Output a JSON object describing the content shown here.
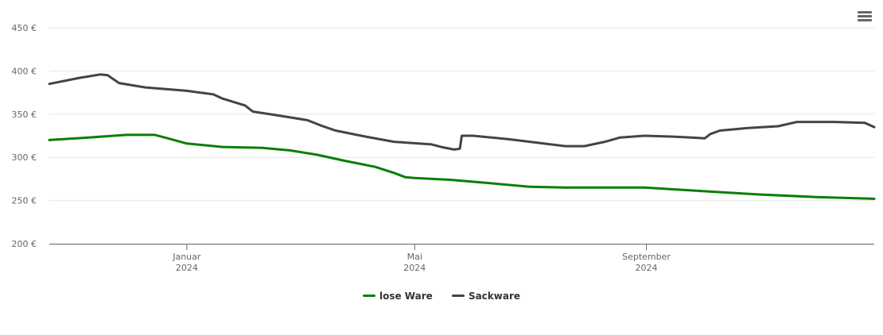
{
  "chart_data": {
    "type": "line",
    "title": "",
    "xlabel": "",
    "ylabel": "",
    "ylim": [
      200,
      450
    ],
    "y_ticks": [
      "200 €",
      "250 €",
      "300 €",
      "350 €",
      "400 €",
      "450 €"
    ],
    "y_tick_values": [
      200,
      250,
      300,
      350,
      400,
      450
    ],
    "x_ticks": [
      {
        "label": [
          "Januar",
          "2024"
        ],
        "date": "2024-01-01"
      },
      {
        "label": [
          "Mai",
          "2024"
        ],
        "date": "2024-05-01"
      },
      {
        "label": [
          "September",
          "2024"
        ],
        "date": "2024-09-01"
      }
    ],
    "xlim": [
      "2023-10-20",
      "2024-12-31"
    ],
    "grid": true,
    "legend": "bottom-center",
    "series": [
      {
        "name": "lose Ware",
        "color": "#0a7e07",
        "points": [
          [
            "2023-10-20",
            320
          ],
          [
            "2023-11-10",
            323
          ],
          [
            "2023-11-30",
            326
          ],
          [
            "2023-12-15",
            326
          ],
          [
            "2023-12-22",
            322
          ],
          [
            "2024-01-01",
            316
          ],
          [
            "2024-01-20",
            312
          ],
          [
            "2024-02-10",
            311
          ],
          [
            "2024-02-25",
            308
          ],
          [
            "2024-03-10",
            303
          ],
          [
            "2024-03-25",
            296
          ],
          [
            "2024-04-10",
            289
          ],
          [
            "2024-04-20",
            282
          ],
          [
            "2024-04-26",
            277
          ],
          [
            "2024-05-01",
            276
          ],
          [
            "2024-05-20",
            274
          ],
          [
            "2024-06-10",
            270
          ],
          [
            "2024-07-01",
            266
          ],
          [
            "2024-07-20",
            265
          ],
          [
            "2024-08-31",
            265
          ],
          [
            "2024-09-30",
            261
          ],
          [
            "2024-10-31",
            257
          ],
          [
            "2024-11-30",
            254
          ],
          [
            "2024-12-31",
            252
          ]
        ]
      },
      {
        "name": "Sackware",
        "color": "#434348",
        "points": [
          [
            "2023-10-20",
            385
          ],
          [
            "2023-11-05",
            392
          ],
          [
            "2023-11-16",
            396
          ],
          [
            "2023-11-20",
            395
          ],
          [
            "2023-11-26",
            386
          ],
          [
            "2023-12-10",
            381
          ],
          [
            "2024-01-01",
            377
          ],
          [
            "2024-01-15",
            373
          ],
          [
            "2024-01-20",
            368
          ],
          [
            "2024-02-01",
            360
          ],
          [
            "2024-02-05",
            353
          ],
          [
            "2024-02-20",
            348
          ],
          [
            "2024-03-05",
            343
          ],
          [
            "2024-03-12",
            337
          ],
          [
            "2024-03-20",
            331
          ],
          [
            "2024-04-05",
            324
          ],
          [
            "2024-04-20",
            318
          ],
          [
            "2024-05-10",
            315
          ],
          [
            "2024-05-15",
            312
          ],
          [
            "2024-05-22",
            309
          ],
          [
            "2024-05-25",
            310
          ],
          [
            "2024-05-26",
            325
          ],
          [
            "2024-06-01",
            325
          ],
          [
            "2024-06-20",
            321
          ],
          [
            "2024-07-05",
            317
          ],
          [
            "2024-07-20",
            313
          ],
          [
            "2024-07-30",
            313
          ],
          [
            "2024-08-10",
            318
          ],
          [
            "2024-08-18",
            323
          ],
          [
            "2024-08-31",
            325
          ],
          [
            "2024-09-15",
            324
          ],
          [
            "2024-09-25",
            323
          ],
          [
            "2024-10-02",
            322
          ],
          [
            "2024-10-05",
            327
          ],
          [
            "2024-10-10",
            331
          ],
          [
            "2024-10-25",
            334
          ],
          [
            "2024-11-10",
            336
          ],
          [
            "2024-11-20",
            341
          ],
          [
            "2024-12-10",
            341
          ],
          [
            "2024-12-26",
            340
          ],
          [
            "2024-12-31",
            335
          ]
        ]
      }
    ]
  },
  "ui": {
    "menu_icon": "hamburger-menu-icon",
    "axis_color": "#666666",
    "grid_color": "#e6e6e6"
  }
}
